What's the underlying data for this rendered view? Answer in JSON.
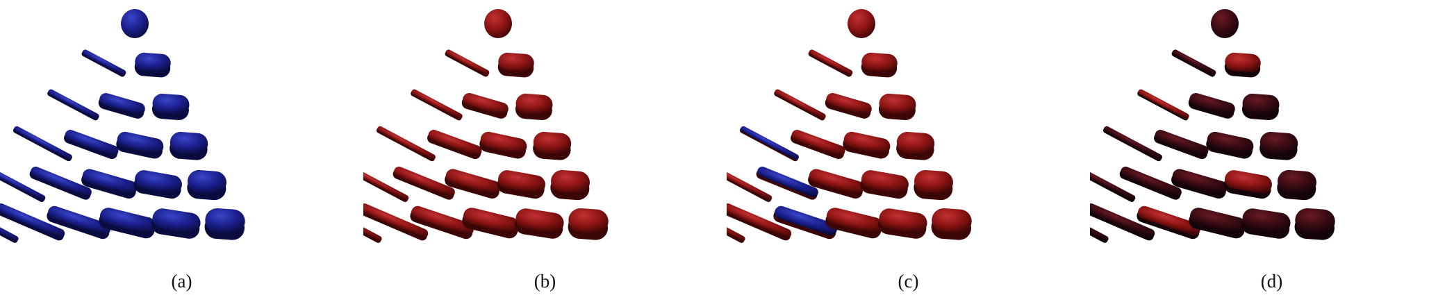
{
  "panels": [
    {
      "caption": "(a)",
      "scheme": "blue"
    },
    {
      "caption": "(b)",
      "scheme": "red"
    },
    {
      "caption": "(c)",
      "scheme": "mixed"
    },
    {
      "caption": "(d)",
      "scheme": "dark"
    }
  ],
  "colors": {
    "blue_base": "#1b1f8c",
    "blue_light": "#3a46c8",
    "blue_dark": "#0a0c3f",
    "red_base": "#8c1414",
    "red_light": "#c23131",
    "red_dark": "#3d0606",
    "dark_base": "#3a0b12",
    "dark_light": "#6a1a24",
    "dark_dark": "#14040a",
    "background": "#ffffff"
  }
}
